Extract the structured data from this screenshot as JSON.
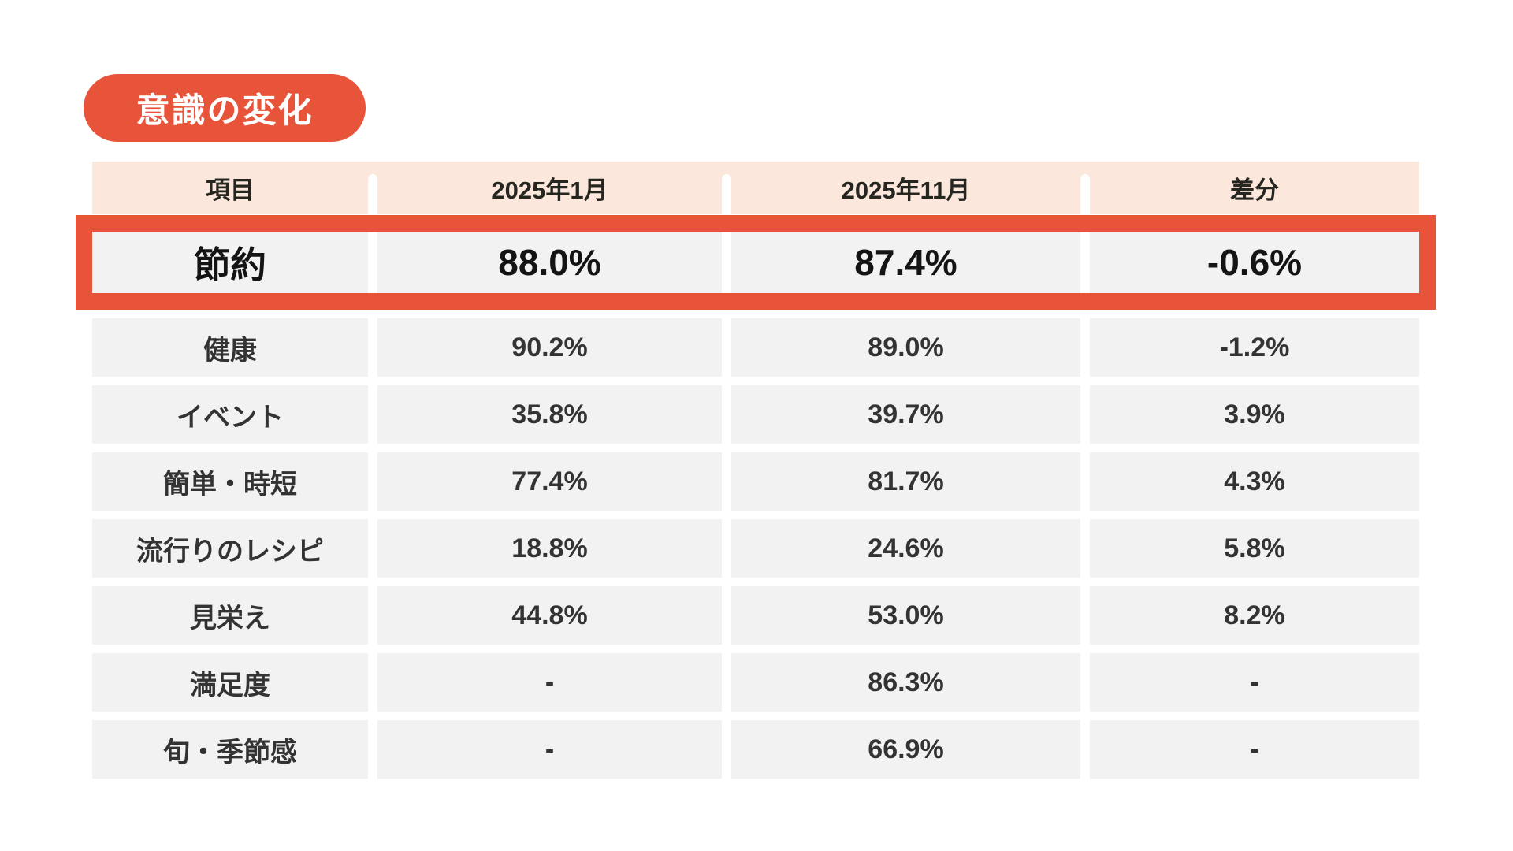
{
  "badge": {
    "label": "意識の変化"
  },
  "colors": {
    "accent_orange": "#E8543A",
    "header_bg": "#FBE7DB",
    "cell_bg": "#F2F2F2",
    "header_text": "#262621",
    "cell_text": "#333333",
    "highlight_text": "#141414",
    "badge_text": "#ffffff",
    "page_bg": "#ffffff"
  },
  "chart_data": {
    "type": "table",
    "title": "意識の変化",
    "columns": [
      "項目",
      "2025年1月",
      "2025年11月",
      "差分"
    ],
    "empty_value": "-",
    "rows": [
      {
        "item": "節約",
        "jan_2025": "88.0%",
        "nov_2025": "87.4%",
        "diff": "-0.6%",
        "highlighted": true
      },
      {
        "item": "健康",
        "jan_2025": "90.2%",
        "nov_2025": "89.0%",
        "diff": "-1.2%",
        "highlighted": false
      },
      {
        "item": "イベント",
        "jan_2025": "35.8%",
        "nov_2025": "39.7%",
        "diff": "3.9%",
        "highlighted": false
      },
      {
        "item": "簡単・時短",
        "jan_2025": "77.4%",
        "nov_2025": "81.7%",
        "diff": "4.3%",
        "highlighted": false
      },
      {
        "item": "流行りのレシピ",
        "jan_2025": "18.8%",
        "nov_2025": "24.6%",
        "diff": "5.8%",
        "highlighted": false
      },
      {
        "item": "見栄え",
        "jan_2025": "44.8%",
        "nov_2025": "53.0%",
        "diff": "8.2%",
        "highlighted": false
      },
      {
        "item": "満足度",
        "jan_2025": "-",
        "nov_2025": "86.3%",
        "diff": "-",
        "highlighted": false
      },
      {
        "item": "旬・季節感",
        "jan_2025": "-",
        "nov_2025": "66.9%",
        "diff": "-",
        "highlighted": false
      }
    ],
    "layout": {
      "legend": "none",
      "grid": "off",
      "highlight_style": "thick orange border around first data row"
    }
  }
}
